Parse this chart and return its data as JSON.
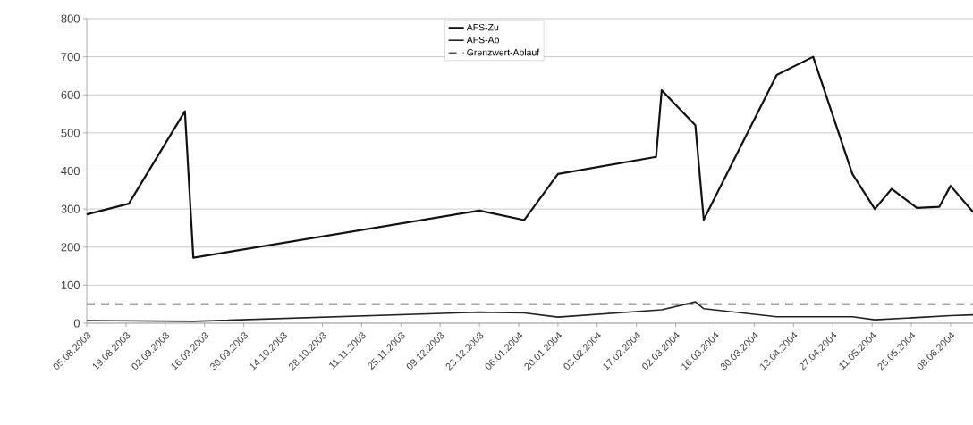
{
  "chart_data": {
    "type": "line",
    "xlim": [
      "2003-08-05",
      "2004-06-16"
    ],
    "xticks": [
      {
        "value": "2003-08-05",
        "label": "05.08.2003"
      },
      {
        "value": "2003-08-19",
        "label": "19.08.2003"
      },
      {
        "value": "2003-09-02",
        "label": "02.09.2003"
      },
      {
        "value": "2003-09-16",
        "label": "16.09.2003"
      },
      {
        "value": "2003-09-30",
        "label": "30.09.2003"
      },
      {
        "value": "2003-10-14",
        "label": "14.10.2003"
      },
      {
        "value": "2003-10-28",
        "label": "28.10.2003"
      },
      {
        "value": "2003-11-11",
        "label": "11.11.2003"
      },
      {
        "value": "2003-11-25",
        "label": "25.11.2003"
      },
      {
        "value": "2003-12-09",
        "label": "09.12.2003"
      },
      {
        "value": "2003-12-23",
        "label": "23.12.2003"
      },
      {
        "value": "2004-01-06",
        "label": "06.01.2004"
      },
      {
        "value": "2004-01-20",
        "label": "20.01.2004"
      },
      {
        "value": "2004-02-03",
        "label": "03.02.2004"
      },
      {
        "value": "2004-02-17",
        "label": "17.02.2004"
      },
      {
        "value": "2004-03-02",
        "label": "02.03.2004"
      },
      {
        "value": "2004-03-16",
        "label": "16.03.2004"
      },
      {
        "value": "2004-03-30",
        "label": "30.03.2004"
      },
      {
        "value": "2004-04-13",
        "label": "13.04.2004"
      },
      {
        "value": "2004-04-27",
        "label": "27.04.2004"
      },
      {
        "value": "2004-05-11",
        "label": "11.05.2004"
      },
      {
        "value": "2004-05-25",
        "label": "25.05.2004"
      },
      {
        "value": "2004-06-08",
        "label": "08.06.2004"
      }
    ],
    "ylim": [
      0,
      800
    ],
    "yticks": [
      0,
      100,
      200,
      300,
      400,
      500,
      600,
      700,
      800
    ],
    "grid": "y",
    "legend": "top",
    "marker": "none",
    "series": [
      {
        "name": "AFS-Zu",
        "color": "#111111",
        "line_style": "solid",
        "x": [
          "2003-08-05",
          "2003-08-20",
          "2003-09-09",
          "2003-09-12",
          "2003-12-23",
          "2004-01-08",
          "2004-01-20",
          "2004-02-24",
          "2004-02-26",
          "2004-03-09",
          "2004-03-12",
          "2004-04-07",
          "2004-04-20",
          "2004-05-04",
          "2004-05-12",
          "2004-05-18",
          "2004-05-27",
          "2004-06-04",
          "2004-06-08",
          "2004-06-16"
        ],
        "values": [
          286,
          314,
          557,
          172,
          296,
          271,
          392,
          437,
          612,
          520,
          272,
          652,
          700,
          392,
          300,
          353,
          303,
          306,
          361,
          292
        ]
      },
      {
        "name": "AFS-Ab",
        "color": "#222222",
        "line_style": "solid",
        "x": [
          "2003-08-05",
          "2003-09-12",
          "2003-12-23",
          "2004-01-08",
          "2004-01-20",
          "2004-02-26",
          "2004-03-09",
          "2004-03-12",
          "2004-04-07",
          "2004-05-04",
          "2004-05-12",
          "2004-05-27",
          "2004-06-08",
          "2004-06-16"
        ],
        "values": [
          7,
          5,
          29,
          27,
          16,
          35,
          56,
          38,
          17,
          17,
          9,
          15,
          20,
          22
        ]
      },
      {
        "name": "Grenzwert-Ablauf",
        "color": "#555555",
        "line_style": "dashed",
        "x": [
          "2003-08-05",
          "2004-06-16"
        ],
        "values": [
          50,
          50
        ]
      }
    ]
  }
}
